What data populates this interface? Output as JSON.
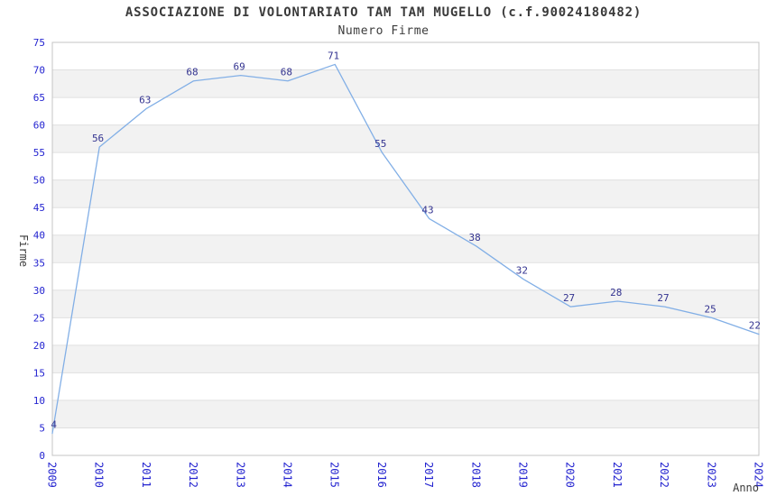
{
  "header": {
    "title": "ASSOCIAZIONE DI VOLONTARIATO TAM TAM MUGELLO (c.f.90024180482)",
    "subtitle": "Numero Firme"
  },
  "chart_data": {
    "type": "line",
    "title": "ASSOCIAZIONE DI VOLONTARIATO TAM TAM MUGELLO (c.f.90024180482)",
    "subtitle": "Numero Firme",
    "xlabel": "Anno",
    "ylabel": "Firme",
    "x": [
      2009,
      2010,
      2011,
      2012,
      2013,
      2014,
      2015,
      2016,
      2017,
      2018,
      2019,
      2020,
      2021,
      2022,
      2023,
      2024
    ],
    "values": [
      4,
      56,
      63,
      68,
      69,
      68,
      71,
      55,
      43,
      38,
      32,
      27,
      28,
      27,
      25,
      22
    ],
    "ylim": [
      0,
      75
    ],
    "ytick_step": 5,
    "grid": "horizontal-bands",
    "legend": "none",
    "point_labels_visible": true,
    "colors": {
      "line": "#82afe6",
      "tick_labels": "#2424d0",
      "point_labels": "#333390",
      "band_fill": "#f2f2f2",
      "band_alt_fill": "#ffffff",
      "gridline": "#e0e0e0",
      "plot_border": "#c4c4c4",
      "title_text": "#3a3a3a"
    }
  }
}
